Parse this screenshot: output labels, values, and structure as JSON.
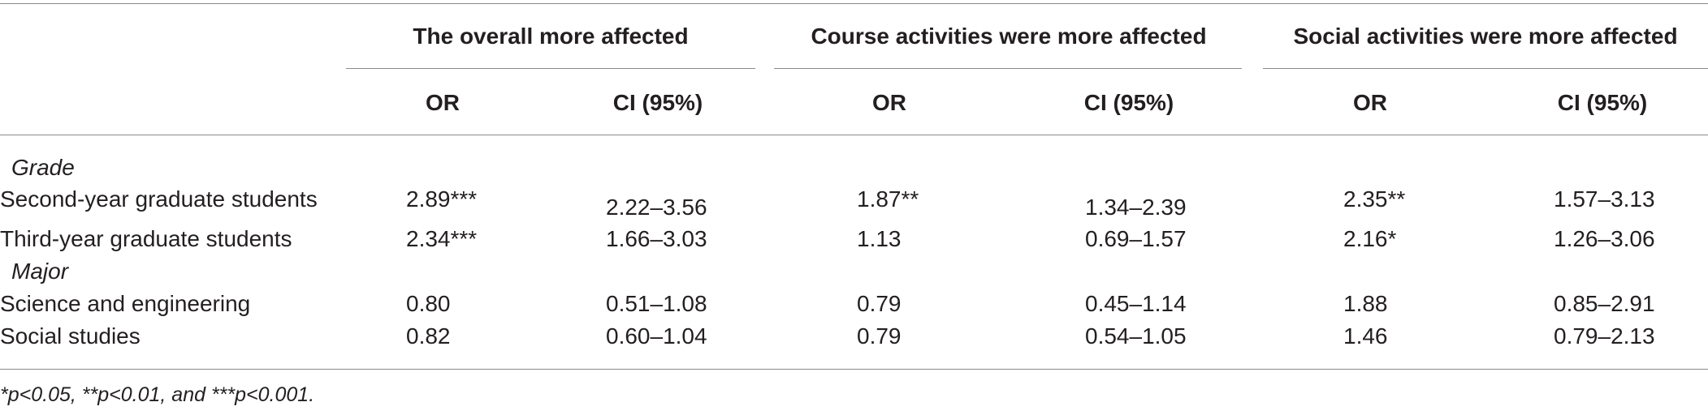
{
  "table": {
    "groups": [
      "The overall more affected",
      "Course activities were more affected",
      "Social activities were more affected"
    ],
    "subheaders": [
      "OR",
      "CI (95%)",
      "OR",
      "CI (95%)",
      "OR",
      "CI (95%)"
    ],
    "sections": [
      {
        "label": "Grade",
        "rows": [
          {
            "label": "Second-year graduate students",
            "cells": [
              "2.89***",
              "2.22–3.56",
              "1.87**",
              "1.34–2.39",
              "2.35**",
              "1.57–3.13"
            ]
          },
          {
            "label": "Third-year graduate students",
            "cells": [
              "2.34***",
              "1.66–3.03",
              "1.13",
              "0.69–1.57",
              "2.16*",
              "1.26–3.06"
            ]
          }
        ]
      },
      {
        "label": "Major",
        "rows": [
          {
            "label": "Science and engineering",
            "cells": [
              "0.80",
              "0.51–1.08",
              "0.79",
              "0.45–1.14",
              "1.88",
              "0.85–2.91"
            ]
          },
          {
            "label": "Social studies",
            "cells": [
              "0.82",
              "0.60–1.04",
              "0.79",
              "0.54–1.05",
              "1.46",
              "0.79–2.13"
            ]
          }
        ]
      }
    ],
    "footnote": "*p<0.05, **p<0.01, and ***p<0.001."
  }
}
